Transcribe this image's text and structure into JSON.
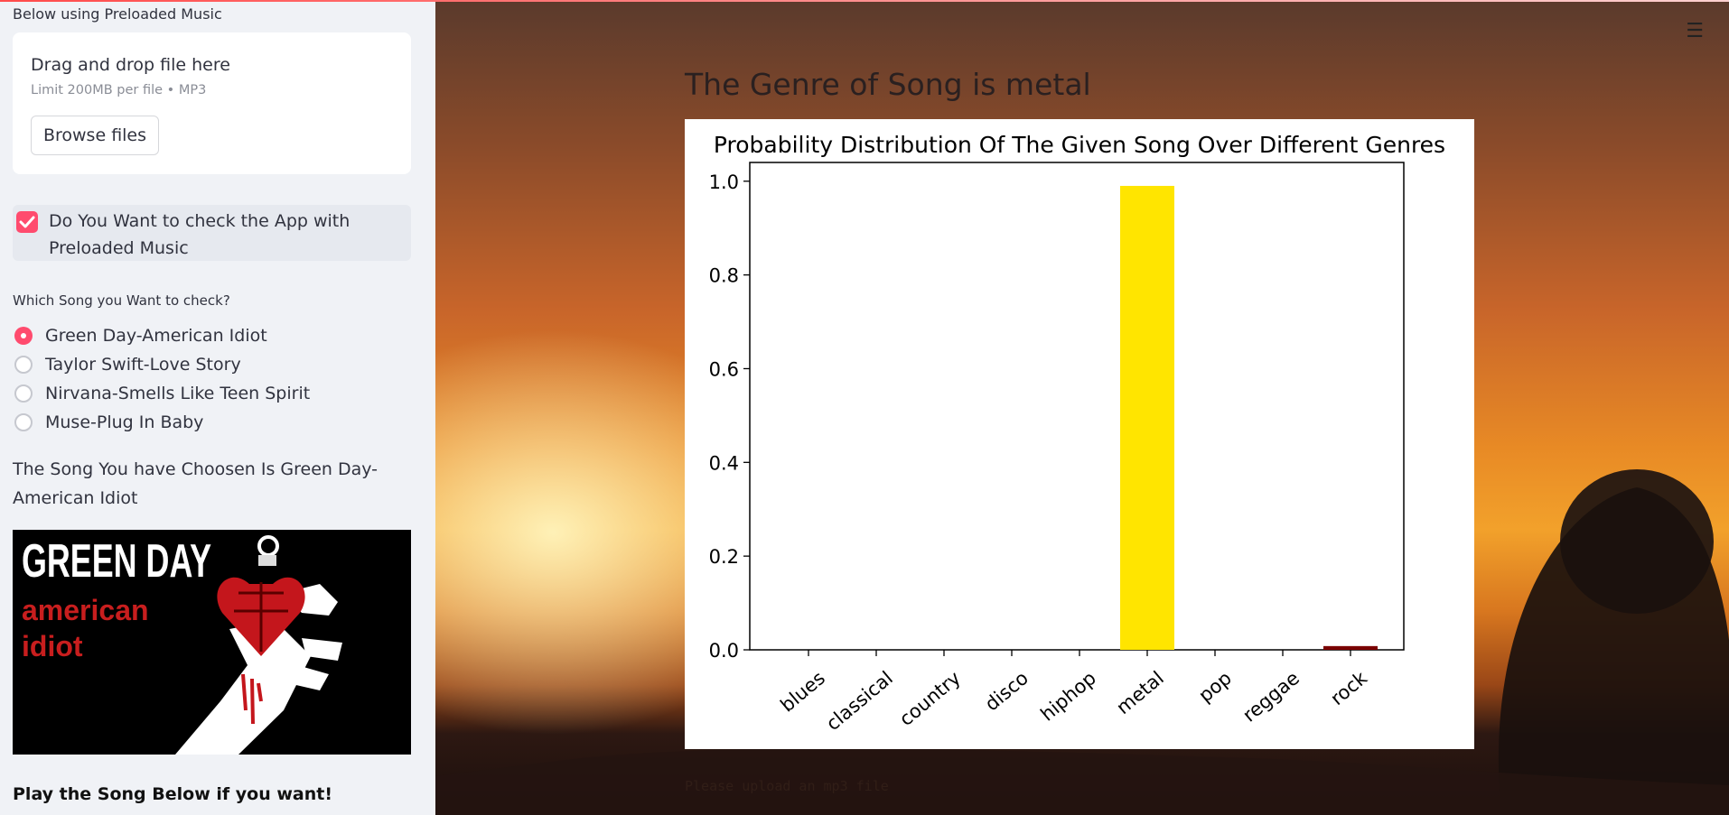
{
  "sidebar": {
    "caption": "Below using Preloaded Music",
    "uploader": {
      "title": "Drag and drop file here",
      "limit": "Limit 200MB per file • MP3",
      "browse_label": "Browse files"
    },
    "checkbox": {
      "label": "Do You Want to check the App with Preloaded Music",
      "checked": true
    },
    "radio_group": {
      "label": "Which Song you Want to check?",
      "options": [
        "Green Day-American Idiot",
        "Taylor Swift-Love Story",
        "Nirvana-Smells Like Teen Spirit",
        "Muse-Plug In Baby"
      ],
      "selected_index": 0
    },
    "chosen_text": "The Song You have Choosen Is Green Day-American Idiot",
    "album": {
      "line1": "GREEN DAY",
      "line2": "american",
      "line3": "idiot"
    },
    "play_text": "Play the Song Below if you want!"
  },
  "main": {
    "menu_icon": "hamburger-icon",
    "heading": "The Genre of Song is metal",
    "upload_note": "Please upload an mp3 file"
  },
  "colors": {
    "accent": "#ff4b6e",
    "metal_bar": "#ffe500",
    "rock_bar": "#7a0000"
  },
  "chart_data": {
    "type": "bar",
    "title": "Probability Distribution Of The Given Song Over Different Genres",
    "categories": [
      "blues",
      "classical",
      "country",
      "disco",
      "hiphop",
      "metal",
      "pop",
      "reggae",
      "rock"
    ],
    "values": [
      0.0,
      0.0,
      0.0,
      0.0,
      0.0,
      0.99,
      0.0,
      0.0,
      0.008
    ],
    "bar_colors": [
      "#1f77b4",
      "#1f77b4",
      "#1f77b4",
      "#1f77b4",
      "#1f77b4",
      "#ffe500",
      "#1f77b4",
      "#1f77b4",
      "#7a0000"
    ],
    "yticks": [
      "0.0",
      "0.2",
      "0.4",
      "0.6",
      "0.8",
      "1.0"
    ],
    "ylim": [
      0,
      1.04
    ],
    "xlabel": "",
    "ylabel": "",
    "grid": false,
    "legend": "none"
  }
}
